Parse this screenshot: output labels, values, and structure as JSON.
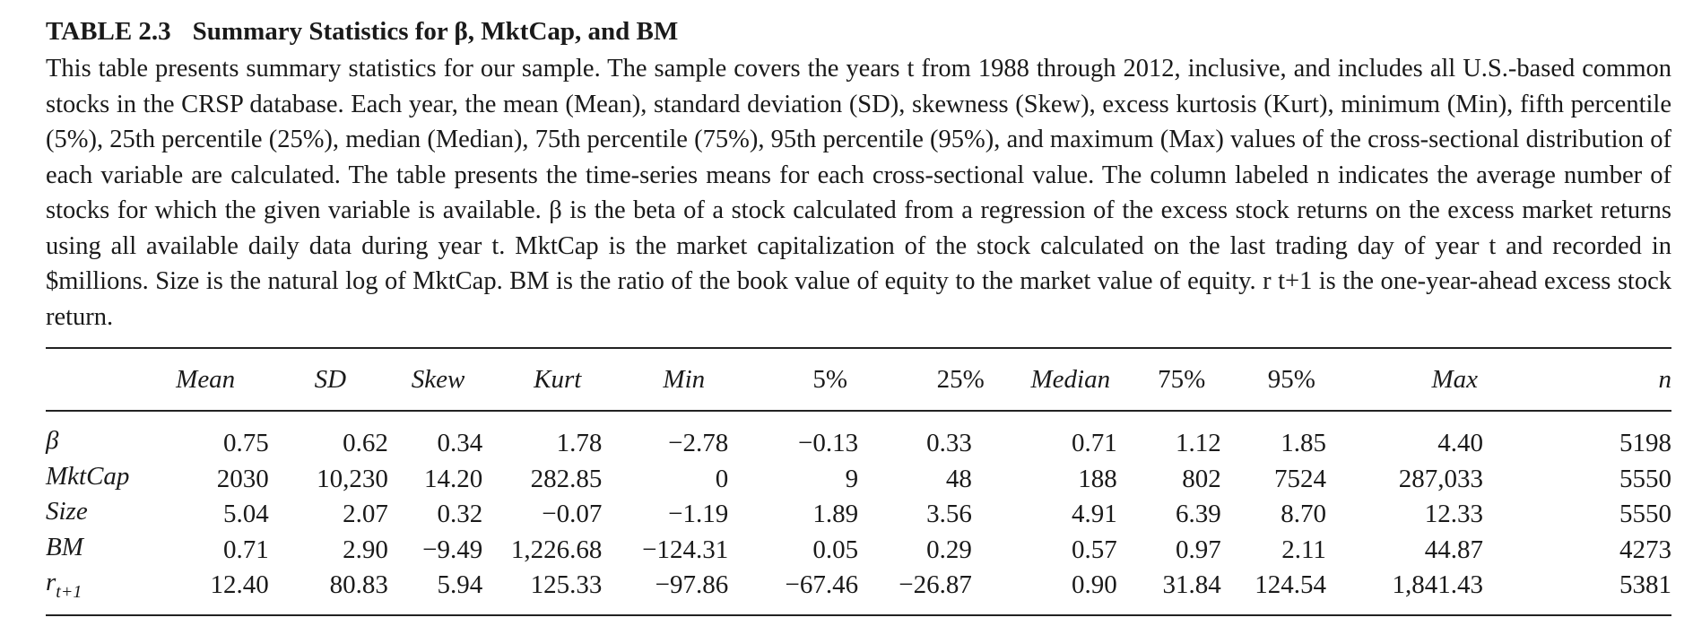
{
  "table": {
    "number": "TABLE 2.3",
    "title": "Summary Statistics for β, MktCap, and BM",
    "caption": "This table presents summary statistics for our sample. The sample covers the years t from 1988 through 2012, inclusive, and includes all U.S.-based common stocks in the CRSP database. Each year, the mean (Mean), standard deviation (SD), skewness (Skew), excess kurtosis (Kurt), minimum (Min), fifth percentile (5%), 25th percentile (25%), median (Median), 75th percentile (75%), 95th percentile (95%), and maximum (Max) values of the cross-sectional distribution of each variable are calculated. The table presents the time-series means for each cross-sectional value. The column labeled n indicates the average number of stocks for which the given variable is available. β is the beta of a stock calculated from a regression of the excess stock returns on the excess market returns using all available daily data during year t. MktCap is the market capitalization of the stock calculated on the last trading day of year t and recorded in $millions. Size is the natural log of MktCap. BM is the ratio of the book value of equity to the market value of equity. r t+1 is the one-year-ahead excess stock return.",
    "columns": [
      "Mean",
      "SD",
      "Skew",
      "Kurt",
      "Min",
      "5%",
      "25%",
      "Median",
      "75%",
      "95%",
      "Max",
      "n"
    ],
    "rows": [
      {
        "label": "β",
        "label_sub": "",
        "values": [
          "0.75",
          "0.62",
          "0.34",
          "1.78",
          "−2.78",
          "−0.13",
          "0.33",
          "0.71",
          "1.12",
          "1.85",
          "4.40",
          "5198"
        ]
      },
      {
        "label": "MktCap",
        "label_sub": "",
        "values": [
          "2030",
          "10,230",
          "14.20",
          "282.85",
          "0",
          "9",
          "48",
          "188",
          "802",
          "7524",
          "287,033",
          "5550"
        ]
      },
      {
        "label": "Size",
        "label_sub": "",
        "values": [
          "5.04",
          "2.07",
          "0.32",
          "−0.07",
          "−1.19",
          "1.89",
          "3.56",
          "4.91",
          "6.39",
          "8.70",
          "12.33",
          "5550"
        ]
      },
      {
        "label": "BM",
        "label_sub": "",
        "values": [
          "0.71",
          "2.90",
          "−9.49",
          "1,226.68",
          "−124.31",
          "0.05",
          "0.29",
          "0.57",
          "0.97",
          "2.11",
          "44.87",
          "4273"
        ]
      },
      {
        "label": "r",
        "label_sub": "t+1",
        "values": [
          "12.40",
          "80.83",
          "5.94",
          "125.33",
          "−97.86",
          "−67.46",
          "−26.87",
          "0.90",
          "31.84",
          "124.54",
          "1,841.43",
          "5381"
        ]
      }
    ]
  }
}
